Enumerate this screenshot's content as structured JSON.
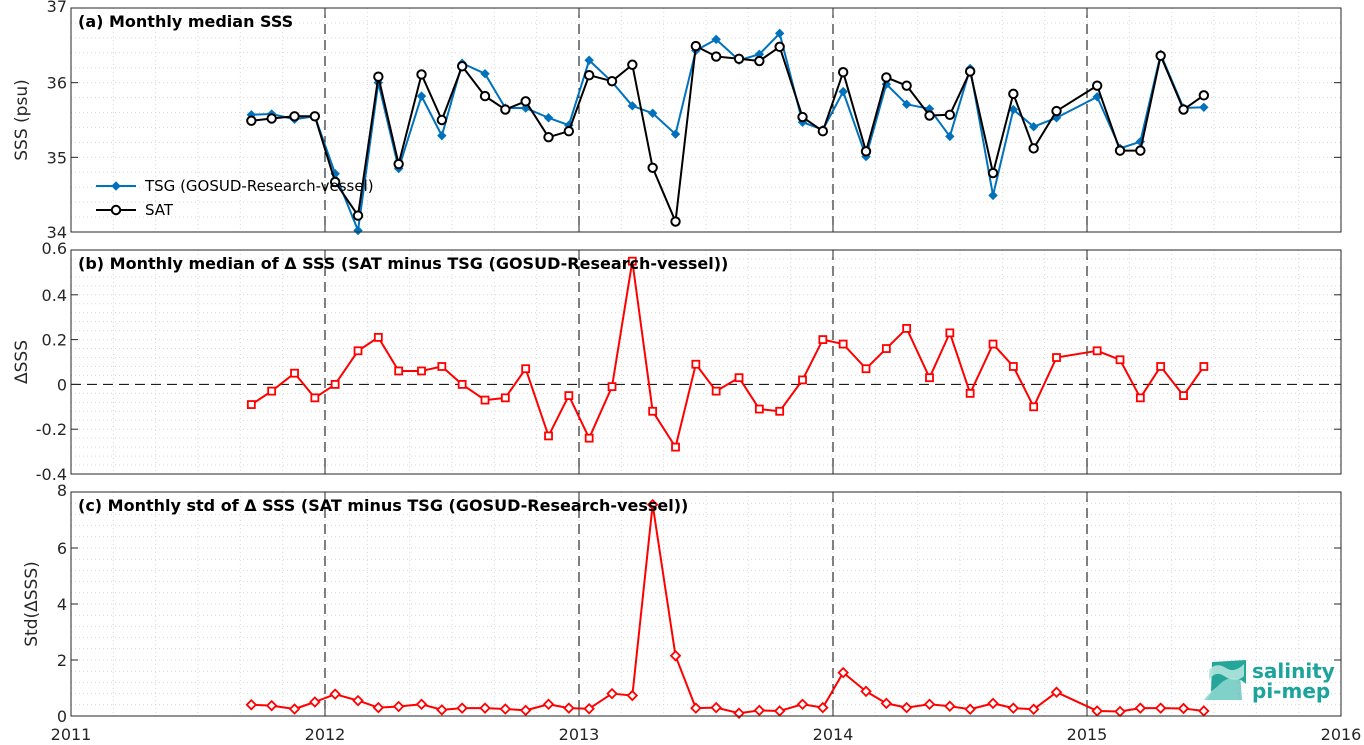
{
  "chart_data": [
    {
      "type": "line",
      "title": "(a) Monthly median SSS",
      "xlabel": "",
      "ylabel": "SSS (psu)",
      "xlim": [
        2011,
        2016
      ],
      "ylim": [
        34,
        37
      ],
      "yticks": [
        34,
        35,
        36,
        37
      ],
      "xticks": [
        2011,
        2012,
        2013,
        2014,
        2015,
        2016
      ],
      "grid": true,
      "legend_position": "left",
      "series": [
        {
          "name": "TSG (GOSUD-Research-vessel)",
          "color": "#0072bd",
          "marker": "diamond",
          "x": [
            2011.71,
            2011.79,
            2011.88,
            2011.96,
            2012.04,
            2012.13,
            2012.21,
            2012.29,
            2012.38,
            2012.46,
            2012.54,
            2012.63,
            2012.71,
            2012.79,
            2012.88,
            2012.96,
            2013.04,
            2013.13,
            2013.21,
            2013.29,
            2013.38,
            2013.46,
            2013.54,
            2013.63,
            2013.71,
            2013.79,
            2013.88,
            2013.96,
            2014.04,
            2014.13,
            2014.21,
            2014.29,
            2014.38,
            2014.46,
            2014.54,
            2014.63,
            2014.71,
            2014.79,
            2014.88,
            2015.04,
            2015.13,
            2015.21,
            2015.29,
            2015.38,
            2015.46
          ],
          "values": [
            35.57,
            35.58,
            35.51,
            35.55,
            34.78,
            34.02,
            36.0,
            34.85,
            35.82,
            35.29,
            36.26,
            36.12,
            35.66,
            35.66,
            35.53,
            35.43,
            36.3,
            36.01,
            35.69,
            35.59,
            35.31,
            36.43,
            36.58,
            36.3,
            36.38,
            36.66,
            35.47,
            35.37,
            35.88,
            35.01,
            35.98,
            35.71,
            35.65,
            35.28,
            36.19,
            34.49,
            35.64,
            35.41,
            35.53,
            35.81,
            35.12,
            35.21,
            36.38,
            35.66,
            35.67
          ]
        },
        {
          "name": "SAT",
          "color": "#000000",
          "marker": "circle",
          "x": [
            2011.71,
            2011.79,
            2011.88,
            2011.96,
            2012.04,
            2012.13,
            2012.21,
            2012.29,
            2012.38,
            2012.46,
            2012.54,
            2012.63,
            2012.71,
            2012.79,
            2012.88,
            2012.96,
            2013.04,
            2013.13,
            2013.21,
            2013.29,
            2013.38,
            2013.46,
            2013.54,
            2013.63,
            2013.71,
            2013.79,
            2013.88,
            2013.96,
            2014.04,
            2014.13,
            2014.21,
            2014.29,
            2014.38,
            2014.46,
            2014.54,
            2014.63,
            2014.71,
            2014.79,
            2014.88,
            2015.04,
            2015.13,
            2015.21,
            2015.29,
            2015.38,
            2015.46
          ],
          "values": [
            35.49,
            35.52,
            35.55,
            35.55,
            34.67,
            34.22,
            36.08,
            34.91,
            36.11,
            35.5,
            36.22,
            35.82,
            35.64,
            35.75,
            35.27,
            35.35,
            36.1,
            36.02,
            36.24,
            34.86,
            34.14,
            36.49,
            36.35,
            36.32,
            36.29,
            36.48,
            35.54,
            35.35,
            36.14,
            35.08,
            36.07,
            35.96,
            35.56,
            35.57,
            36.15,
            34.79,
            35.85,
            35.12,
            35.62,
            35.96,
            35.09,
            35.09,
            36.36,
            35.64,
            35.83
          ]
        }
      ]
    },
    {
      "type": "line",
      "title": "(b) Monthly median of Δ SSS (SAT minus TSG (GOSUD-Research-vessel))",
      "xlabel": "",
      "ylabel": "ΔSSS",
      "xlim": [
        2011,
        2016
      ],
      "ylim": [
        -0.4,
        0.6
      ],
      "yticks": [
        -0.4,
        -0.2,
        0,
        0.2,
        0.4,
        0.6
      ],
      "ytick_labels": [
        "-0.4",
        "-0.2",
        "0",
        "0.2",
        "0.4",
        "0.6"
      ],
      "grid": true,
      "series": [
        {
          "color": "#ff0000",
          "marker": "square",
          "x": [
            2011.71,
            2011.79,
            2011.88,
            2011.96,
            2012.04,
            2012.13,
            2012.21,
            2012.29,
            2012.38,
            2012.46,
            2012.54,
            2012.63,
            2012.71,
            2012.79,
            2012.88,
            2012.96,
            2013.04,
            2013.13,
            2013.21,
            2013.29,
            2013.38,
            2013.46,
            2013.54,
            2013.63,
            2013.71,
            2013.79,
            2013.88,
            2013.96,
            2014.04,
            2014.13,
            2014.21,
            2014.29,
            2014.38,
            2014.46,
            2014.54,
            2014.63,
            2014.71,
            2014.79,
            2014.88,
            2015.04,
            2015.13,
            2015.21,
            2015.29,
            2015.38,
            2015.46
          ],
          "values": [
            -0.09,
            -0.03,
            0.05,
            -0.06,
            0.0,
            0.15,
            0.21,
            0.06,
            0.06,
            0.08,
            0.0,
            -0.07,
            -0.06,
            0.07,
            -0.23,
            -0.05,
            -0.24,
            -0.01,
            0.55,
            -0.12,
            -0.28,
            0.09,
            -0.03,
            0.03,
            -0.11,
            -0.12,
            0.02,
            0.2,
            0.18,
            0.07,
            0.16,
            0.25,
            0.03,
            0.23,
            -0.04,
            0.18,
            0.08,
            -0.1,
            0.12,
            0.15,
            0.11,
            -0.06,
            0.08,
            -0.05,
            0.08
          ]
        }
      ]
    },
    {
      "type": "line",
      "title": "(c) Monthly std of Δ SSS (SAT minus TSG (GOSUD-Research-vessel))",
      "xlabel": "",
      "ylabel": "Std(ΔSSS)",
      "xlim": [
        2011,
        2016
      ],
      "ylim": [
        0,
        8
      ],
      "yticks": [
        0,
        2,
        4,
        6,
        8
      ],
      "grid": true,
      "series": [
        {
          "color": "#ff0000",
          "marker": "diamond",
          "x": [
            2011.71,
            2011.79,
            2011.88,
            2011.96,
            2012.04,
            2012.13,
            2012.21,
            2012.29,
            2012.38,
            2012.46,
            2012.54,
            2012.63,
            2012.71,
            2012.79,
            2012.88,
            2012.96,
            2013.04,
            2013.13,
            2013.21,
            2013.29,
            2013.38,
            2013.46,
            2013.54,
            2013.63,
            2013.71,
            2013.79,
            2013.88,
            2013.96,
            2014.04,
            2014.13,
            2014.21,
            2014.29,
            2014.38,
            2014.46,
            2014.54,
            2014.63,
            2014.71,
            2014.79,
            2014.88,
            2015.04,
            2015.13,
            2015.21,
            2015.29,
            2015.38,
            2015.46
          ],
          "values": [
            0.4,
            0.37,
            0.25,
            0.5,
            0.78,
            0.55,
            0.3,
            0.34,
            0.42,
            0.22,
            0.28,
            0.28,
            0.25,
            0.2,
            0.42,
            0.28,
            0.26,
            0.8,
            0.73,
            7.55,
            2.15,
            0.28,
            0.3,
            0.1,
            0.2,
            0.18,
            0.42,
            0.3,
            1.55,
            0.88,
            0.45,
            0.3,
            0.42,
            0.35,
            0.24,
            0.45,
            0.28,
            0.24,
            0.85,
            0.18,
            0.16,
            0.28,
            0.28,
            0.27,
            0.18
          ]
        }
      ]
    }
  ],
  "logo": {
    "line1": "salinity",
    "line2": "pi-mep",
    "color": "#1ba39c"
  }
}
